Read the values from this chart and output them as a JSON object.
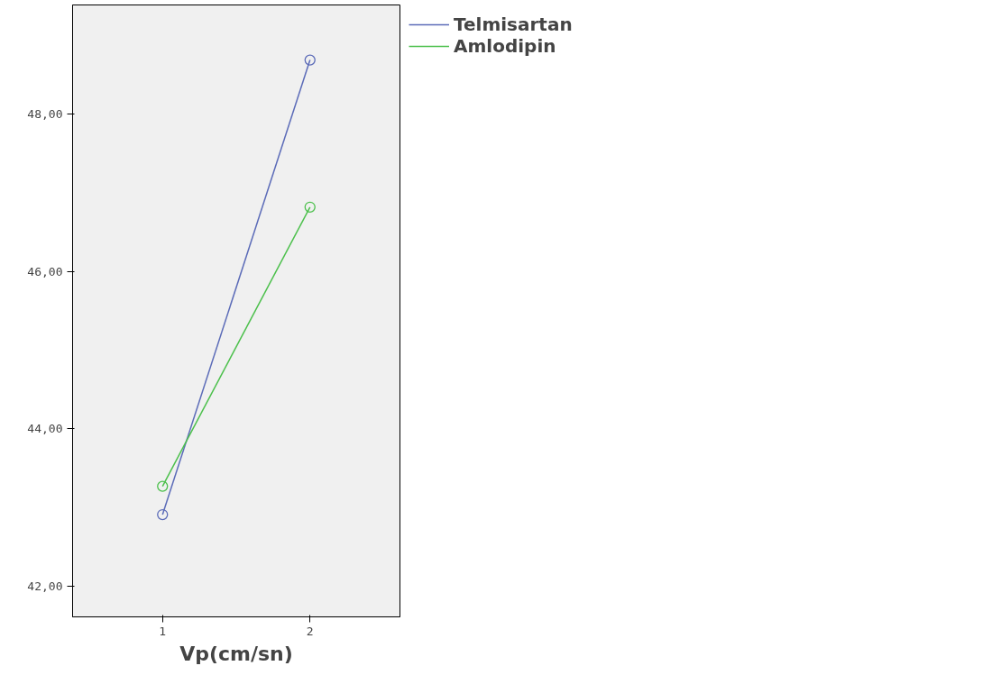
{
  "chart_data": {
    "type": "line",
    "xlabel": "Vp(cm/sn)",
    "x": [
      1,
      2
    ],
    "series": [
      {
        "name": "Telmisartan",
        "color": "#5b6bb8",
        "values": [
          42.91,
          48.69
        ]
      },
      {
        "name": "Amlodipin",
        "color": "#4cc04c",
        "values": [
          43.27,
          46.82
        ]
      }
    ],
    "xlim": [
      0.39,
      2.61
    ],
    "ylim": [
      41.61,
      49.39
    ],
    "xticks": [
      1,
      2
    ],
    "yticks": [
      {
        "value": 42,
        "label": "42,00"
      },
      {
        "value": 44,
        "label": "44,00"
      },
      {
        "value": 46,
        "label": "46,00"
      },
      {
        "value": 48,
        "label": "48,00"
      }
    ],
    "grid": false,
    "legend": "top right",
    "marker": "circle",
    "line_style": "solid"
  }
}
